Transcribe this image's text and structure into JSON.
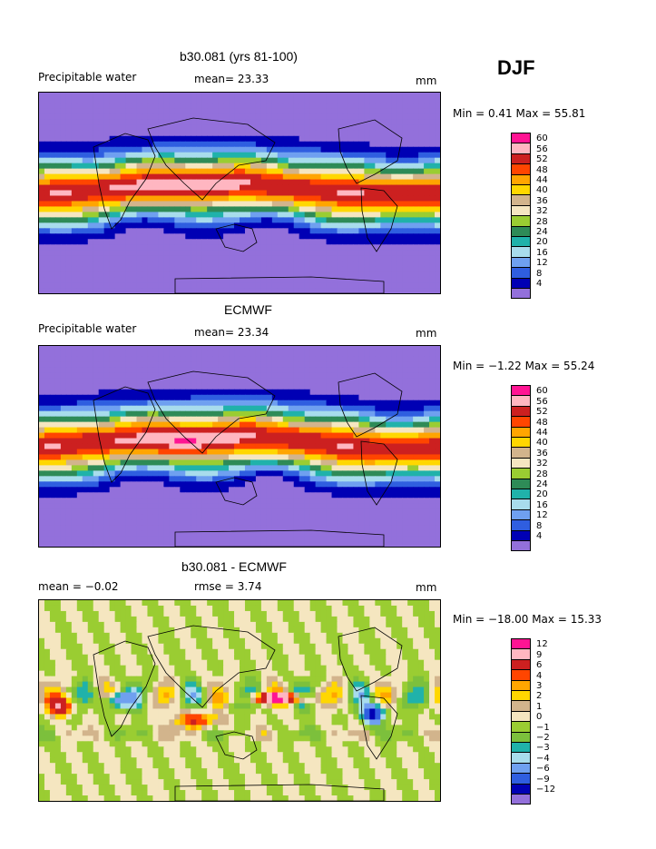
{
  "season": "DJF",
  "panels": [
    {
      "title": "b30.081 (yrs 81-100)",
      "variable": "Precipitable water",
      "stat_left": "",
      "stat_mid": "mean=  23.33",
      "units": "mm",
      "minmax": "Min =   0.41  Max =  55.81",
      "kind": "abs"
    },
    {
      "title": "ECMWF",
      "variable": "Precipitable water",
      "stat_left": "",
      "stat_mid": "mean=  23.34",
      "units": "mm",
      "minmax": "Min =  −1.22  Max =  55.24",
      "kind": "abs"
    },
    {
      "title": "b30.081 - ECMWF",
      "variable": "",
      "stat_left": "mean =  −0.02",
      "stat_mid": "rmse =   3.74",
      "units": "mm",
      "minmax": "Min = −18.00  Max =  15.33",
      "kind": "diff"
    }
  ],
  "chart_data": [
    {
      "type": "heatmap",
      "title": "b30.081 (yrs 81-100)",
      "variable": "Precipitable water",
      "units": "mm",
      "mean": 23.33,
      "min": 0.41,
      "max": 55.81,
      "contour_levels": [
        4,
        8,
        12,
        16,
        20,
        24,
        28,
        32,
        36,
        40,
        44,
        48,
        52,
        56,
        60
      ],
      "colors": [
        "#9370db",
        "#0000b4",
        "#2f5ee0",
        "#6fa0f0",
        "#a8dcec",
        "#20b2aa",
        "#2e8b57",
        "#9acd32",
        "#f5e6c0",
        "#d2b48c",
        "#ffd700",
        "#ffa500",
        "#ff4500",
        "#cc2020",
        "#ffb6c1",
        "#ff1493"
      ]
    },
    {
      "type": "heatmap",
      "title": "ECMWF",
      "variable": "Precipitable water",
      "units": "mm",
      "mean": 23.34,
      "min": -1.22,
      "max": 55.24,
      "contour_levels": [
        4,
        8,
        12,
        16,
        20,
        24,
        28,
        32,
        36,
        40,
        44,
        48,
        52,
        56,
        60
      ],
      "colors": [
        "#9370db",
        "#0000b4",
        "#2f5ee0",
        "#6fa0f0",
        "#a8dcec",
        "#20b2aa",
        "#2e8b57",
        "#9acd32",
        "#f5e6c0",
        "#d2b48c",
        "#ffd700",
        "#ffa500",
        "#ff4500",
        "#cc2020",
        "#ffb6c1",
        "#ff1493"
      ]
    },
    {
      "type": "heatmap",
      "title": "b30.081 - ECMWF",
      "units": "mm",
      "mean": -0.02,
      "rmse": 3.74,
      "min": -18.0,
      "max": 15.33,
      "contour_levels": [
        -12,
        -9,
        -6,
        -4,
        -3,
        -2,
        -1,
        0,
        1,
        2,
        3,
        4,
        6,
        9,
        12
      ],
      "colors": [
        "#9370db",
        "#0000b4",
        "#2f5ee0",
        "#6fa0f0",
        "#a8dcec",
        "#20b2aa",
        "#7cc03c",
        "#9acd32",
        "#f5e6c0",
        "#d2b48c",
        "#ffd700",
        "#ffa500",
        "#ff4500",
        "#cc2020",
        "#ffb6c1",
        "#ff1493"
      ]
    }
  ],
  "colorbars": {
    "abs": {
      "labels": [
        "60",
        "56",
        "52",
        "48",
        "44",
        "40",
        "36",
        "32",
        "28",
        "24",
        "20",
        "16",
        "12",
        "8",
        "4"
      ],
      "colors": [
        "#ff1493",
        "#ffb6c1",
        "#cc2020",
        "#ff4500",
        "#ffa500",
        "#ffd700",
        "#d2b48c",
        "#f5e6c0",
        "#9acd32",
        "#2e8b57",
        "#20b2aa",
        "#a8dcec",
        "#6fa0f0",
        "#2f5ee0",
        "#0000b4",
        "#9370db"
      ]
    },
    "diff": {
      "labels": [
        "12",
        "9",
        "6",
        "4",
        "3",
        "2",
        "1",
        "0",
        "−1",
        "−2",
        "−3",
        "−4",
        "−6",
        "−9",
        "−12"
      ],
      "colors": [
        "#ff1493",
        "#ffb6c1",
        "#cc2020",
        "#ff4500",
        "#ffa500",
        "#ffd700",
        "#d2b48c",
        "#f5e6c0",
        "#9acd32",
        "#7cc03c",
        "#20b2aa",
        "#a8dcec",
        "#6fa0f0",
        "#2f5ee0",
        "#0000b4",
        "#9370db"
      ]
    }
  }
}
